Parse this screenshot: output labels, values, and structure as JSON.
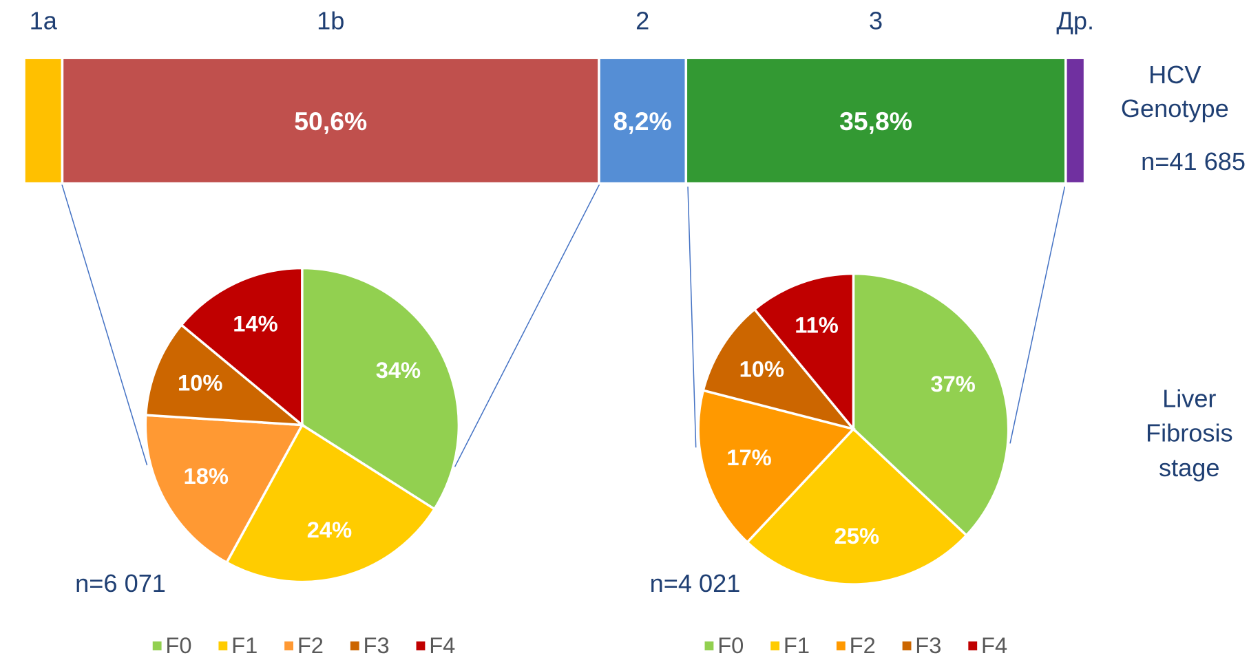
{
  "chart_data": [
    {
      "type": "stacked-bar",
      "categories": [
        "1a",
        "1b",
        "2",
        "3",
        "Др."
      ],
      "values": [
        3.6,
        50.6,
        8.2,
        35.8,
        1.8
      ],
      "value_labels": [
        null,
        "50,6%",
        "8,2%",
        "35,8%",
        null
      ],
      "colors": [
        "#ffc000",
        "#c0504d",
        "#558ed5",
        "#339933",
        "#7030a0"
      ],
      "label": "HCV Genotype",
      "annotation": "n=41 685"
    },
    {
      "type": "pie",
      "categories": [
        "F0",
        "F1",
        "F2",
        "F3",
        "F4"
      ],
      "values": [
        34,
        24,
        18,
        10,
        14
      ],
      "value_labels": [
        "34%",
        "24%",
        "18%",
        "10%",
        "14%"
      ],
      "colors": [
        "#92d050",
        "#ffcc00",
        "#ff9933",
        "#cc6600",
        "#c00000"
      ],
      "annotation": "n=6 071"
    },
    {
      "type": "pie",
      "categories": [
        "F0",
        "F1",
        "F2",
        "F3",
        "F4"
      ],
      "values": [
        37,
        25,
        17,
        10,
        11
      ],
      "value_labels": [
        "37%",
        "25%",
        "17%",
        "10%",
        "11%"
      ],
      "colors": [
        "#92d050",
        "#ffcc00",
        "#ff9900",
        "#cc6600",
        "#c00000"
      ],
      "annotation": "n=4 021"
    }
  ],
  "row_label": "Liver Fibrosis stage"
}
